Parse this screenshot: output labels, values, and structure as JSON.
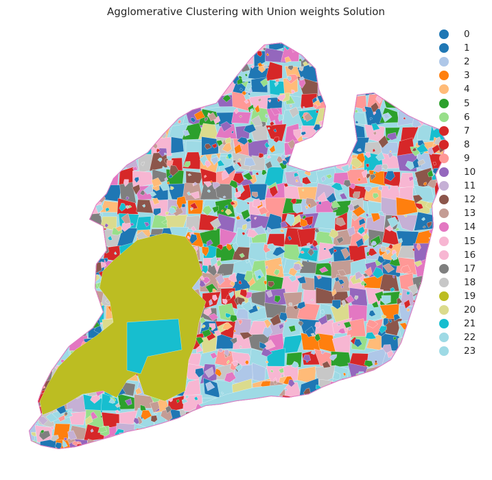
{
  "title": "Agglomerative Clustering with Union weights Solution",
  "legend": [
    {
      "label": "0",
      "color": "#1f77b4"
    },
    {
      "label": "1",
      "color": "#1f77b4"
    },
    {
      "label": "2",
      "color": "#aec7e8"
    },
    {
      "label": "3",
      "color": "#ff7f0e"
    },
    {
      "label": "4",
      "color": "#ffbb78"
    },
    {
      "label": "5",
      "color": "#2ca02c"
    },
    {
      "label": "6",
      "color": "#98df8a"
    },
    {
      "label": "7",
      "color": "#d62728"
    },
    {
      "label": "8",
      "color": "#d62728"
    },
    {
      "label": "9",
      "color": "#ff9896"
    },
    {
      "label": "10",
      "color": "#9467bd"
    },
    {
      "label": "11",
      "color": "#c5b0d5"
    },
    {
      "label": "12",
      "color": "#8c564b"
    },
    {
      "label": "13",
      "color": "#c49c94"
    },
    {
      "label": "14",
      "color": "#e377c2"
    },
    {
      "label": "15",
      "color": "#f7b6d2"
    },
    {
      "label": "16",
      "color": "#f7b6d2"
    },
    {
      "label": "17",
      "color": "#7f7f7f"
    },
    {
      "label": "18",
      "color": "#c7c7c7"
    },
    {
      "label": "19",
      "color": "#bcbd22"
    },
    {
      "label": "20",
      "color": "#dbdb8d"
    },
    {
      "label": "21",
      "color": "#17becf"
    },
    {
      "label": "22",
      "color": "#9edae5"
    },
    {
      "label": "23",
      "color": "#9edae5"
    }
  ]
}
